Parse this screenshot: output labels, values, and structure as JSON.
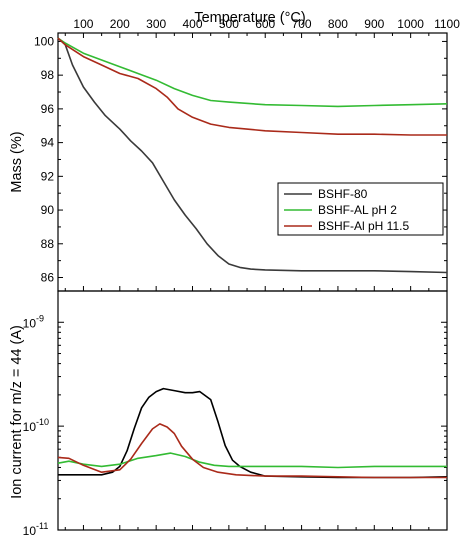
{
  "chart_data": [
    {
      "type": "line",
      "panel": "top",
      "xlabel": "Temperature (°C)",
      "ylabel": "Mass (%)",
      "xlim": [
        30,
        1100
      ],
      "ylim": [
        85.2,
        100.5
      ],
      "x_ticks": [
        100,
        200,
        300,
        400,
        500,
        600,
        700,
        800,
        900,
        1000,
        1100
      ],
      "y_ticks": [
        86,
        88,
        90,
        92,
        94,
        96,
        98,
        100
      ],
      "grid": false,
      "legend_position": "center-right",
      "series": [
        {
          "name": "BSHF-80",
          "color": "#3a3a3a",
          "x": [
            30,
            50,
            70,
            100,
            130,
            160,
            200,
            230,
            260,
            290,
            320,
            350,
            380,
            410,
            440,
            470,
            500,
            530,
            560,
            600,
            700,
            800,
            900,
            1000,
            1100
          ],
          "y": [
            100.2,
            99.8,
            98.6,
            97.3,
            96.4,
            95.6,
            94.8,
            94.1,
            93.5,
            92.8,
            91.7,
            90.6,
            89.7,
            88.9,
            88.0,
            87.3,
            86.8,
            86.6,
            86.5,
            86.45,
            86.4,
            86.4,
            86.4,
            86.35,
            86.3
          ]
        },
        {
          "name": "BSHF-AL pH 2",
          "color": "#33bb33",
          "x": [
            30,
            50,
            100,
            150,
            200,
            250,
            300,
            350,
            400,
            450,
            500,
            600,
            700,
            800,
            900,
            1000,
            1100
          ],
          "y": [
            100.2,
            99.9,
            99.3,
            98.9,
            98.5,
            98.1,
            97.7,
            97.2,
            96.8,
            96.5,
            96.4,
            96.25,
            96.2,
            96.15,
            96.2,
            96.25,
            96.3
          ]
        },
        {
          "name": "BSHF-Al pH 11.5",
          "color": "#aa2a1a",
          "x": [
            30,
            50,
            100,
            150,
            200,
            250,
            300,
            330,
            360,
            400,
            450,
            500,
            600,
            700,
            800,
            900,
            1000,
            1100
          ],
          "y": [
            100.2,
            99.8,
            99.1,
            98.6,
            98.1,
            97.8,
            97.2,
            96.7,
            96.0,
            95.5,
            95.1,
            94.9,
            94.7,
            94.6,
            94.5,
            94.5,
            94.45,
            94.45
          ]
        }
      ]
    },
    {
      "type": "line",
      "panel": "bottom",
      "ylabel": "Ion current for m/z = 44 (A)",
      "yscale": "log",
      "xlim": [
        30,
        1100
      ],
      "ylim": [
        1e-11,
        2e-09
      ],
      "y_ticks": [
        {
          "value": 1e-11,
          "base": "10",
          "exp": "-11"
        },
        {
          "value": 1e-10,
          "base": "10",
          "exp": "-10"
        },
        {
          "value": 1e-09,
          "base": "10",
          "exp": "-9"
        }
      ],
      "grid": false,
      "series": [
        {
          "color": "#000000",
          "x": [
            30,
            100,
            150,
            180,
            200,
            220,
            240,
            260,
            280,
            300,
            320,
            350,
            380,
            400,
            420,
            450,
            470,
            490,
            510,
            530,
            560,
            600,
            700,
            800,
            900,
            1000,
            1100
          ],
          "y": [
            3.4e-11,
            3.4e-11,
            3.4e-11,
            3.6e-11,
            4.1e-11,
            5.8e-11,
            9.5e-11,
            1.5e-10,
            1.9e-10,
            2.15e-10,
            2.3e-10,
            2.2e-10,
            2.1e-10,
            2.1e-10,
            2.15e-10,
            1.8e-10,
            1.1e-10,
            6.5e-11,
            4.7e-11,
            4.1e-11,
            3.6e-11,
            3.3e-11,
            3.25e-11,
            3.2e-11,
            3.2e-11,
            3.2e-11,
            3.25e-11
          ]
        },
        {
          "color": "#33bb33",
          "x": [
            30,
            60,
            100,
            150,
            200,
            250,
            300,
            340,
            380,
            420,
            460,
            500,
            600,
            700,
            800,
            900,
            1000,
            1100
          ],
          "y": [
            4.4e-11,
            4.6e-11,
            4.3e-11,
            4.1e-11,
            4.3e-11,
            4.9e-11,
            5.2e-11,
            5.5e-11,
            5.1e-11,
            4.5e-11,
            4.2e-11,
            4.1e-11,
            4.1e-11,
            4.1e-11,
            4e-11,
            4.1e-11,
            4.1e-11,
            4.1e-11
          ]
        },
        {
          "color": "#aa2a1a",
          "x": [
            30,
            60,
            100,
            150,
            200,
            230,
            260,
            290,
            310,
            330,
            350,
            370,
            400,
            430,
            470,
            520,
            600,
            700,
            800,
            900,
            1000,
            1100
          ],
          "y": [
            5e-11,
            4.9e-11,
            4.2e-11,
            3.6e-11,
            3.8e-11,
            4.8e-11,
            6.8e-11,
            9.4e-11,
            1.05e-10,
            9.8e-11,
            8.5e-11,
            6.4e-11,
            4.8e-11,
            4e-11,
            3.6e-11,
            3.4e-11,
            3.3e-11,
            3.3e-11,
            3.25e-11,
            3.2e-11,
            3.2e-11,
            3.2e-11
          ]
        }
      ]
    }
  ]
}
